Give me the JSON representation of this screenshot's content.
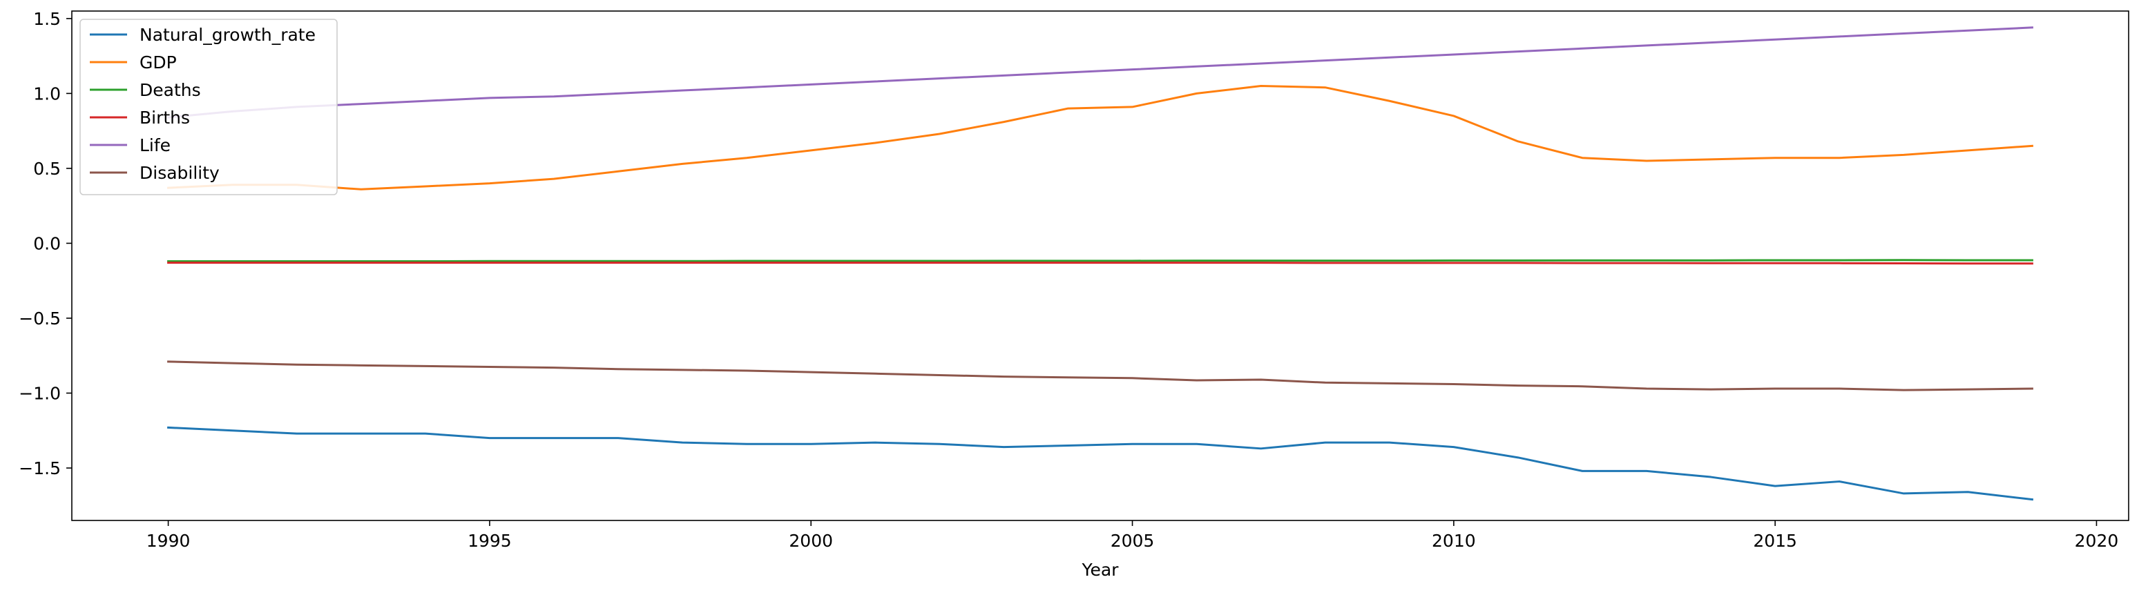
{
  "chart_data": {
    "type": "line",
    "title": "",
    "xlabel": "Year",
    "ylabel": "",
    "xlim": [
      1988.5,
      2020.5
    ],
    "ylim": [
      -1.85,
      1.55
    ],
    "xticks": [
      1990,
      1995,
      2000,
      2005,
      2010,
      2015,
      2020
    ],
    "yticks": [
      1.5,
      1.0,
      0.5,
      0.0,
      -0.5,
      -1.0,
      -1.5
    ],
    "ytick_labels": [
      "1.5",
      "1.0",
      "0.5",
      "0.0",
      "−0.5",
      "−1.0",
      "−1.5"
    ],
    "grid": false,
    "legend_position": "upper-left",
    "x": [
      1990,
      1991,
      1992,
      1993,
      1994,
      1995,
      1996,
      1997,
      1998,
      1999,
      2000,
      2001,
      2002,
      2003,
      2004,
      2005,
      2006,
      2007,
      2008,
      2009,
      2010,
      2011,
      2012,
      2013,
      2014,
      2015,
      2016,
      2017,
      2018,
      2019
    ],
    "series": [
      {
        "name": "Natural_growth_rate",
        "color": "#1f77b4",
        "values": [
          -1.23,
          -1.25,
          -1.27,
          -1.27,
          -1.27,
          -1.3,
          -1.3,
          -1.3,
          -1.33,
          -1.34,
          -1.34,
          -1.33,
          -1.34,
          -1.36,
          -1.35,
          -1.34,
          -1.34,
          -1.37,
          -1.33,
          -1.33,
          -1.36,
          -1.43,
          -1.52,
          -1.52,
          -1.56,
          -1.62,
          -1.59,
          -1.67,
          -1.66,
          -1.71
        ]
      },
      {
        "name": "GDP",
        "color": "#ff7f0e",
        "values": [
          0.37,
          0.39,
          0.39,
          0.36,
          0.38,
          0.4,
          0.43,
          0.48,
          0.53,
          0.57,
          0.62,
          0.67,
          0.73,
          0.81,
          0.9,
          0.91,
          1.0,
          1.05,
          1.04,
          0.95,
          0.85,
          0.68,
          0.57,
          0.55,
          0.56,
          0.57,
          0.57,
          0.59,
          0.62,
          0.65
        ]
      },
      {
        "name": "Deaths",
        "color": "#2ca02c",
        "values": [
          -0.12,
          -0.12,
          -0.12,
          -0.12,
          -0.12,
          -0.119,
          -0.119,
          -0.119,
          -0.119,
          -0.118,
          -0.118,
          -0.118,
          -0.118,
          -0.117,
          -0.117,
          -0.117,
          -0.116,
          -0.116,
          -0.116,
          -0.116,
          -0.115,
          -0.115,
          -0.114,
          -0.114,
          -0.114,
          -0.113,
          -0.113,
          -0.112,
          -0.113,
          -0.113
        ]
      },
      {
        "name": "Births",
        "color": "#d62728",
        "values": [
          -0.13,
          -0.13,
          -0.13,
          -0.13,
          -0.13,
          -0.13,
          -0.13,
          -0.13,
          -0.13,
          -0.13,
          -0.13,
          -0.13,
          -0.13,
          -0.13,
          -0.13,
          -0.13,
          -0.13,
          -0.13,
          -0.131,
          -0.131,
          -0.131,
          -0.131,
          -0.132,
          -0.132,
          -0.133,
          -0.133,
          -0.133,
          -0.134,
          -0.135,
          -0.135
        ]
      },
      {
        "name": "Life",
        "color": "#9467bd",
        "values": [
          0.84,
          0.88,
          0.91,
          0.93,
          0.95,
          0.97,
          0.98,
          1.0,
          1.02,
          1.04,
          1.06,
          1.08,
          1.1,
          1.12,
          1.14,
          1.16,
          1.18,
          1.2,
          1.22,
          1.24,
          1.26,
          1.28,
          1.3,
          1.32,
          1.34,
          1.36,
          1.38,
          1.4,
          1.42,
          1.44
        ]
      },
      {
        "name": "Disability",
        "color": "#8c564b",
        "values": [
          -0.79,
          -0.8,
          -0.81,
          -0.815,
          -0.82,
          -0.825,
          -0.83,
          -0.84,
          -0.845,
          -0.85,
          -0.86,
          -0.87,
          -0.88,
          -0.89,
          -0.895,
          -0.9,
          -0.915,
          -0.91,
          -0.93,
          -0.935,
          -0.94,
          -0.95,
          -0.955,
          -0.97,
          -0.975,
          -0.97,
          -0.97,
          -0.98,
          -0.975,
          -0.97
        ]
      }
    ]
  }
}
